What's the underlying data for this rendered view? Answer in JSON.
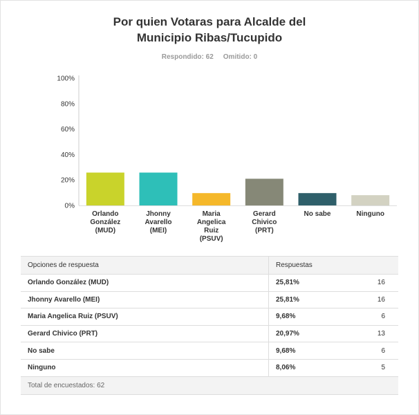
{
  "title_lines": [
    "Por quien Votaras para Alcalde del",
    "Municipio Ribas/Tucupido"
  ],
  "answered_label": "Respondido: 62",
  "skipped_label": "Omitido: 0",
  "chart_data": {
    "type": "bar",
    "categories": [
      [
        "Orlando",
        "González",
        "(MUD)"
      ],
      [
        "Jhonny",
        "Avarello",
        "(MEI)"
      ],
      [
        "Maria",
        "Angelica",
        "Ruiz",
        "(PSUV)"
      ],
      [
        "Gerard",
        "Chivico",
        "(PRT)"
      ],
      [
        "No sabe"
      ],
      [
        "Ninguno"
      ]
    ],
    "values": [
      25.81,
      25.81,
      9.68,
      20.97,
      9.68,
      8.06
    ],
    "colors": [
      "#c9d32b",
      "#2ebfb8",
      "#f5b82a",
      "#868877",
      "#2f5f6a",
      "#d3d2c2"
    ],
    "yticks": [
      "0%",
      "20%",
      "40%",
      "60%",
      "80%",
      "100%"
    ],
    "ylim": [
      0,
      100
    ],
    "grid": false
  },
  "table": {
    "col_option": "Opciones de respuesta",
    "col_responses": "Respuestas",
    "rows": [
      {
        "option": "Orlando González (MUD)",
        "percent": "25,81%",
        "count": "16"
      },
      {
        "option": "Jhonny Avarello (MEI)",
        "percent": "25,81%",
        "count": "16"
      },
      {
        "option": "Maria Angelica Ruiz (PSUV)",
        "percent": "9,68%",
        "count": "6"
      },
      {
        "option": "Gerard Chivico (PRT)",
        "percent": "20,97%",
        "count": "13"
      },
      {
        "option": "No sabe",
        "percent": "9,68%",
        "count": "6"
      },
      {
        "option": "Ninguno",
        "percent": "8,06%",
        "count": "5"
      }
    ],
    "total_label": "Total de encuestados: 62"
  }
}
